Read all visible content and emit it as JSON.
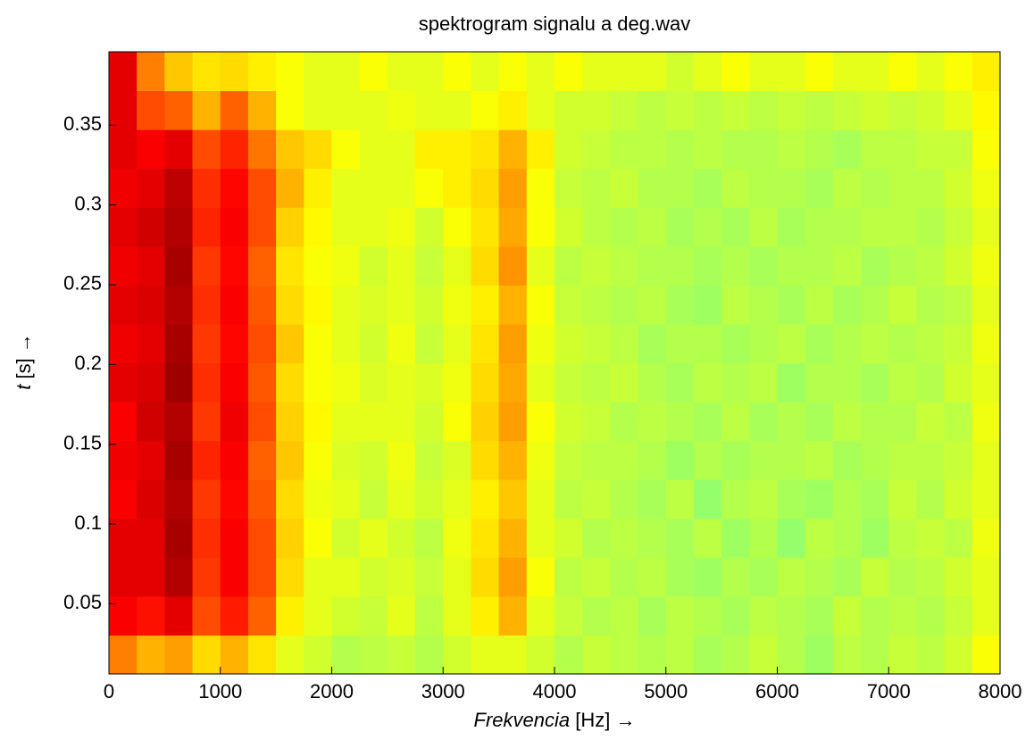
{
  "chart_data": {
    "type": "heatmap",
    "title": "spektrogram signalu a deg.wav",
    "xlabel": "Frekvencia",
    "xlabel_unit": "[Hz] →",
    "ylabel": "t",
    "ylabel_unit": "[s] →",
    "xlim": [
      0,
      8000
    ],
    "ylim": [
      0.006,
      0.396
    ],
    "xticks": [
      0,
      1000,
      2000,
      3000,
      4000,
      5000,
      6000,
      7000,
      8000
    ],
    "yticks": [
      0.05,
      0.1,
      0.15,
      0.2,
      0.25,
      0.3,
      0.35
    ],
    "colormap": "jet",
    "clim": [
      0,
      1
    ],
    "z": [
      [
        0.75,
        0.7,
        0.72,
        0.66,
        0.7,
        0.65,
        0.6,
        0.58,
        0.55,
        0.56,
        0.57,
        0.55,
        0.58,
        0.6,
        0.6,
        0.58,
        0.55,
        0.57,
        0.56,
        0.55,
        0.56,
        0.54,
        0.55,
        0.57,
        0.55,
        0.53,
        0.56,
        0.55,
        0.57,
        0.56,
        0.58,
        0.62
      ],
      [
        0.88,
        0.86,
        0.9,
        0.8,
        0.85,
        0.78,
        0.64,
        0.6,
        0.58,
        0.57,
        0.6,
        0.56,
        0.6,
        0.64,
        0.7,
        0.6,
        0.57,
        0.55,
        0.56,
        0.54,
        0.56,
        0.55,
        0.54,
        0.56,
        0.55,
        0.54,
        0.57,
        0.55,
        0.56,
        0.55,
        0.57,
        0.6
      ],
      [
        0.9,
        0.9,
        0.95,
        0.82,
        0.88,
        0.8,
        0.66,
        0.6,
        0.6,
        0.58,
        0.59,
        0.57,
        0.6,
        0.66,
        0.72,
        0.62,
        0.56,
        0.57,
        0.55,
        0.56,
        0.54,
        0.53,
        0.55,
        0.54,
        0.56,
        0.55,
        0.54,
        0.57,
        0.55,
        0.56,
        0.58,
        0.6
      ],
      [
        0.9,
        0.9,
        0.96,
        0.83,
        0.88,
        0.8,
        0.67,
        0.62,
        0.58,
        0.6,
        0.58,
        0.56,
        0.61,
        0.65,
        0.7,
        0.6,
        0.58,
        0.55,
        0.56,
        0.55,
        0.54,
        0.56,
        0.53,
        0.55,
        0.52,
        0.56,
        0.55,
        0.53,
        0.56,
        0.57,
        0.56,
        0.61
      ],
      [
        0.88,
        0.91,
        0.95,
        0.82,
        0.87,
        0.79,
        0.66,
        0.61,
        0.6,
        0.57,
        0.6,
        0.58,
        0.6,
        0.64,
        0.68,
        0.6,
        0.56,
        0.57,
        0.55,
        0.54,
        0.56,
        0.52,
        0.55,
        0.56,
        0.54,
        0.53,
        0.55,
        0.54,
        0.57,
        0.55,
        0.58,
        0.6
      ],
      [
        0.89,
        0.9,
        0.96,
        0.84,
        0.88,
        0.78,
        0.68,
        0.62,
        0.59,
        0.58,
        0.61,
        0.57,
        0.59,
        0.66,
        0.7,
        0.61,
        0.57,
        0.56,
        0.56,
        0.55,
        0.53,
        0.55,
        0.54,
        0.55,
        0.55,
        0.56,
        0.54,
        0.55,
        0.56,
        0.56,
        0.57,
        0.6
      ],
      [
        0.88,
        0.92,
        0.95,
        0.82,
        0.89,
        0.8,
        0.67,
        0.63,
        0.6,
        0.6,
        0.6,
        0.58,
        0.62,
        0.67,
        0.72,
        0.62,
        0.58,
        0.57,
        0.55,
        0.56,
        0.55,
        0.54,
        0.56,
        0.54,
        0.55,
        0.54,
        0.56,
        0.55,
        0.55,
        0.57,
        0.56,
        0.61
      ],
      [
        0.9,
        0.91,
        0.97,
        0.83,
        0.88,
        0.79,
        0.66,
        0.62,
        0.61,
        0.59,
        0.6,
        0.59,
        0.61,
        0.66,
        0.71,
        0.6,
        0.57,
        0.56,
        0.57,
        0.55,
        0.54,
        0.56,
        0.55,
        0.56,
        0.53,
        0.55,
        0.55,
        0.54,
        0.56,
        0.55,
        0.58,
        0.6
      ],
      [
        0.89,
        0.9,
        0.96,
        0.82,
        0.87,
        0.8,
        0.68,
        0.62,
        0.6,
        0.58,
        0.61,
        0.57,
        0.6,
        0.65,
        0.72,
        0.61,
        0.58,
        0.57,
        0.56,
        0.54,
        0.55,
        0.55,
        0.54,
        0.55,
        0.56,
        0.54,
        0.55,
        0.56,
        0.55,
        0.56,
        0.57,
        0.61
      ],
      [
        0.9,
        0.91,
        0.95,
        0.83,
        0.88,
        0.79,
        0.66,
        0.63,
        0.6,
        0.59,
        0.6,
        0.58,
        0.61,
        0.64,
        0.7,
        0.62,
        0.57,
        0.56,
        0.55,
        0.56,
        0.54,
        0.53,
        0.56,
        0.55,
        0.54,
        0.56,
        0.54,
        0.55,
        0.57,
        0.55,
        0.56,
        0.6
      ],
      [
        0.89,
        0.9,
        0.96,
        0.82,
        0.87,
        0.78,
        0.65,
        0.62,
        0.61,
        0.58,
        0.6,
        0.57,
        0.6,
        0.66,
        0.73,
        0.6,
        0.56,
        0.57,
        0.56,
        0.55,
        0.55,
        0.54,
        0.55,
        0.54,
        0.55,
        0.55,
        0.56,
        0.54,
        0.55,
        0.56,
        0.58,
        0.61
      ],
      [
        0.9,
        0.92,
        0.95,
        0.84,
        0.88,
        0.8,
        0.67,
        0.63,
        0.6,
        0.6,
        0.61,
        0.58,
        0.62,
        0.65,
        0.71,
        0.62,
        0.58,
        0.56,
        0.55,
        0.56,
        0.54,
        0.55,
        0.54,
        0.56,
        0.54,
        0.55,
        0.55,
        0.56,
        0.56,
        0.55,
        0.57,
        0.6
      ],
      [
        0.89,
        0.9,
        0.94,
        0.83,
        0.87,
        0.8,
        0.7,
        0.64,
        0.6,
        0.6,
        0.6,
        0.62,
        0.64,
        0.66,
        0.72,
        0.62,
        0.57,
        0.56,
        0.57,
        0.55,
        0.55,
        0.54,
        0.56,
        0.55,
        0.55,
        0.54,
        0.56,
        0.55,
        0.56,
        0.56,
        0.58,
        0.61
      ],
      [
        0.9,
        0.88,
        0.9,
        0.8,
        0.84,
        0.76,
        0.68,
        0.66,
        0.62,
        0.6,
        0.6,
        0.64,
        0.64,
        0.65,
        0.7,
        0.64,
        0.58,
        0.57,
        0.56,
        0.56,
        0.55,
        0.56,
        0.55,
        0.55,
        0.56,
        0.55,
        0.54,
        0.56,
        0.56,
        0.57,
        0.57,
        0.62
      ],
      [
        0.9,
        0.8,
        0.78,
        0.7,
        0.78,
        0.7,
        0.62,
        0.6,
        0.6,
        0.6,
        0.61,
        0.6,
        0.6,
        0.62,
        0.64,
        0.6,
        0.58,
        0.58,
        0.57,
        0.56,
        0.57,
        0.56,
        0.57,
        0.56,
        0.57,
        0.56,
        0.57,
        0.58,
        0.57,
        0.58,
        0.6,
        0.63
      ],
      [
        0.9,
        0.75,
        0.68,
        0.65,
        0.66,
        0.64,
        0.62,
        0.6,
        0.6,
        0.62,
        0.6,
        0.6,
        0.62,
        0.6,
        0.62,
        0.6,
        0.62,
        0.6,
        0.6,
        0.6,
        0.58,
        0.6,
        0.62,
        0.6,
        0.6,
        0.62,
        0.6,
        0.6,
        0.62,
        0.6,
        0.62,
        0.64
      ]
    ]
  }
}
